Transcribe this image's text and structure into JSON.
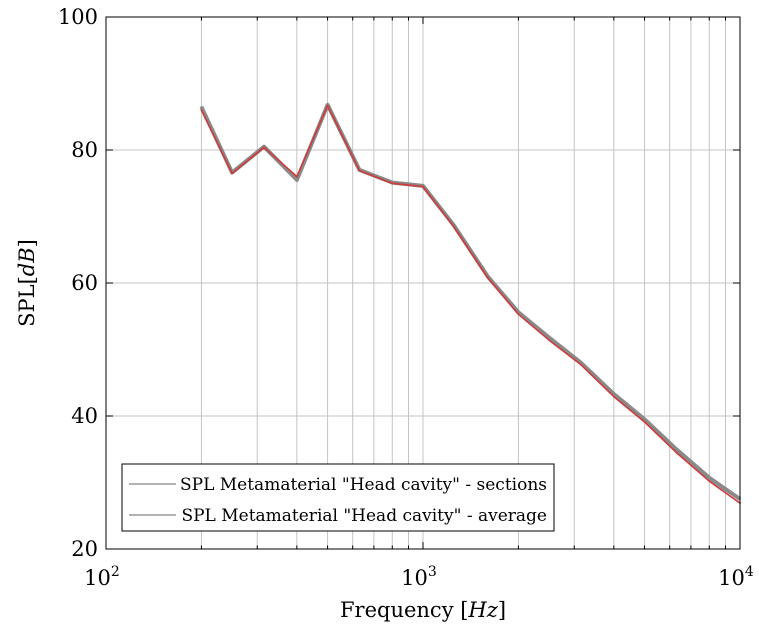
{
  "chart_data": {
    "type": "line",
    "xlabel": "Frequency [Hz]",
    "ylabel": "SPL[dB]",
    "x_scale": "log",
    "xlim": [
      100,
      10000
    ],
    "ylim": [
      20,
      100
    ],
    "x_ticks": [
      {
        "value": 100,
        "base": "10",
        "exp": "2"
      },
      {
        "value": 1000,
        "base": "10",
        "exp": "3"
      },
      {
        "value": 10000,
        "base": "10",
        "exp": "4"
      }
    ],
    "y_ticks": [
      {
        "value": 20,
        "label": "20"
      },
      {
        "value": 40,
        "label": "40"
      },
      {
        "value": 60,
        "label": "60"
      },
      {
        "value": 80,
        "label": "80"
      },
      {
        "value": 100,
        "label": "100"
      }
    ],
    "grid": true,
    "legend_position": "bottom-left",
    "x": [
      200,
      250,
      315,
      400,
      500,
      630,
      800,
      1000,
      1250,
      1600,
      2000,
      2500,
      3150,
      4000,
      5000,
      6300,
      8000,
      10000
    ],
    "series": [
      {
        "name": "SPL Metamaterial \"Head cavity\" - sections",
        "color": "#8a8a8a",
        "values": [
          86.5,
          76.6,
          80.5,
          75.5,
          86.8,
          77.0,
          75.1,
          74.6,
          68.7,
          61.0,
          55.6,
          51.8,
          48.0,
          43.3,
          39.5,
          35.0,
          30.7,
          27.5
        ]
      },
      {
        "name": "SPL Metamaterial \"Head cavity\" - average",
        "color": "#d13a3a",
        "values": [
          86.0,
          76.5,
          80.4,
          76.0,
          86.7,
          76.9,
          75.0,
          74.5,
          68.5,
          60.8,
          55.3,
          51.4,
          47.7,
          42.9,
          39.1,
          34.5,
          30.2,
          26.9
        ]
      }
    ]
  }
}
